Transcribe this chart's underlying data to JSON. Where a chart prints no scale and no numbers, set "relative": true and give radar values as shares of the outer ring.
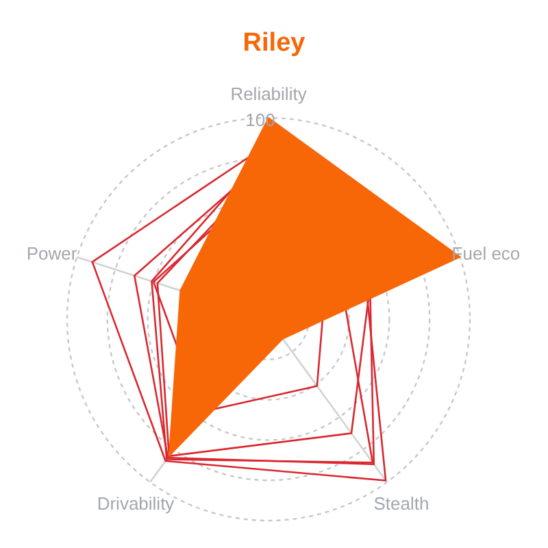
{
  "chart_data": {
    "type": "radar",
    "title": "Riley",
    "relative": true,
    "grid": true,
    "annotations": [
      "100"
    ],
    "categories": [
      "Reliability",
      "Fuel eco",
      "Stealth",
      "Drivability",
      "Power"
    ],
    "series": [
      {
        "color": "#d9282f",
        "values": [
          0.87,
          0.51,
          0.99,
          0.87,
          0.92
        ]
      },
      {
        "color": "#d9282f",
        "values": [
          0.8,
          0.53,
          0.89,
          0.85,
          0.7
        ]
      },
      {
        "color": "#d9282f",
        "values": [
          0.85,
          0.39,
          0.88,
          0.86,
          0.61
        ]
      },
      {
        "color": "#d9282f",
        "values": [
          0.76,
          0.53,
          0.7,
          0.84,
          0.58
        ]
      },
      {
        "color": "#d9282f",
        "values": [
          0.7,
          0.29,
          0.41,
          0.57,
          0.6
        ]
      },
      {
        "type": "area",
        "color": "#f76707",
        "values": [
          1.0,
          1.0,
          0.12,
          0.84,
          0.46
        ]
      }
    ]
  }
}
